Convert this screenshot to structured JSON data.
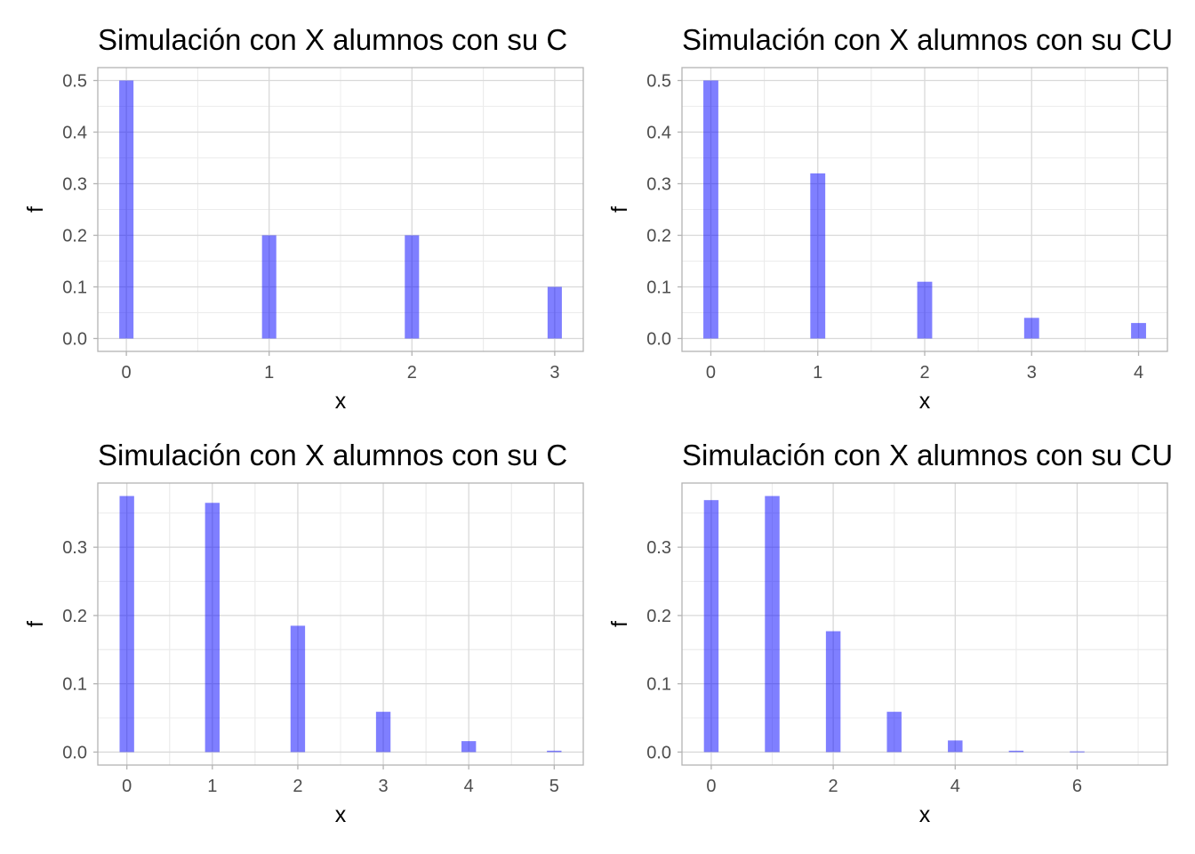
{
  "colors": {
    "bar": "#0000ff",
    "grid": "#d9d9d9",
    "gridMinor": "#ececec",
    "frame": "#b3b3b3"
  },
  "chart_data": [
    {
      "type": "bar",
      "title": "Simulación con X alumnos con su C",
      "xlabel": "x",
      "ylabel": "f",
      "x": [
        0,
        1,
        2,
        3
      ],
      "values": [
        0.5,
        0.2,
        0.2,
        0.1
      ],
      "xlim": [
        -0.2,
        3.2
      ],
      "ylim": [
        -0.025,
        0.525
      ],
      "xticks": [
        "0",
        "1",
        "2",
        "3"
      ],
      "yticks": [
        "0.0",
        "0.1",
        "0.2",
        "0.3",
        "0.4",
        "0.5"
      ],
      "bar_width": 0.1
    },
    {
      "type": "bar",
      "title": "Simulación con X alumnos con su CU",
      "xlabel": "x",
      "ylabel": "f",
      "x": [
        0,
        1,
        2,
        3,
        4
      ],
      "values": [
        0.5,
        0.32,
        0.11,
        0.04,
        0.03
      ],
      "xlim": [
        -0.27,
        4.27
      ],
      "ylim": [
        -0.025,
        0.525
      ],
      "xticks": [
        "0",
        "1",
        "2",
        "3",
        "4"
      ],
      "yticks": [
        "0.0",
        "0.1",
        "0.2",
        "0.3",
        "0.4",
        "0.5"
      ],
      "bar_width": 0.14
    },
    {
      "type": "bar",
      "title": "Simulación con X alumnos con su C",
      "xlabel": "x",
      "ylabel": "f",
      "x": [
        0,
        1,
        2,
        3,
        4,
        5
      ],
      "values": [
        0.375,
        0.365,
        0.185,
        0.059,
        0.016,
        0.002
      ],
      "xlim": [
        -0.34,
        5.34
      ],
      "ylim": [
        -0.019,
        0.394
      ],
      "xticks": [
        "0",
        "1",
        "2",
        "3",
        "4",
        "5"
      ],
      "yticks": [
        "0.0",
        "0.1",
        "0.2",
        "0.3"
      ],
      "bar_width": 0.17
    },
    {
      "type": "bar",
      "title": "Simulación con X alumnos con su CU",
      "xlabel": "x",
      "ylabel": "f",
      "x": [
        0,
        1,
        2,
        3,
        4,
        5,
        6,
        7
      ],
      "values": [
        0.369,
        0.375,
        0.177,
        0.059,
        0.017,
        0.002,
        0.001,
        0
      ],
      "xlim": [
        -0.48,
        7.48
      ],
      "ylim": [
        -0.019,
        0.394
      ],
      "xticks": [
        "0",
        "2",
        "4",
        "6"
      ],
      "xtick_values": [
        0,
        2,
        4,
        6
      ],
      "yticks": [
        "0.0",
        "0.1",
        "0.2",
        "0.3"
      ],
      "bar_width": 0.24
    }
  ]
}
